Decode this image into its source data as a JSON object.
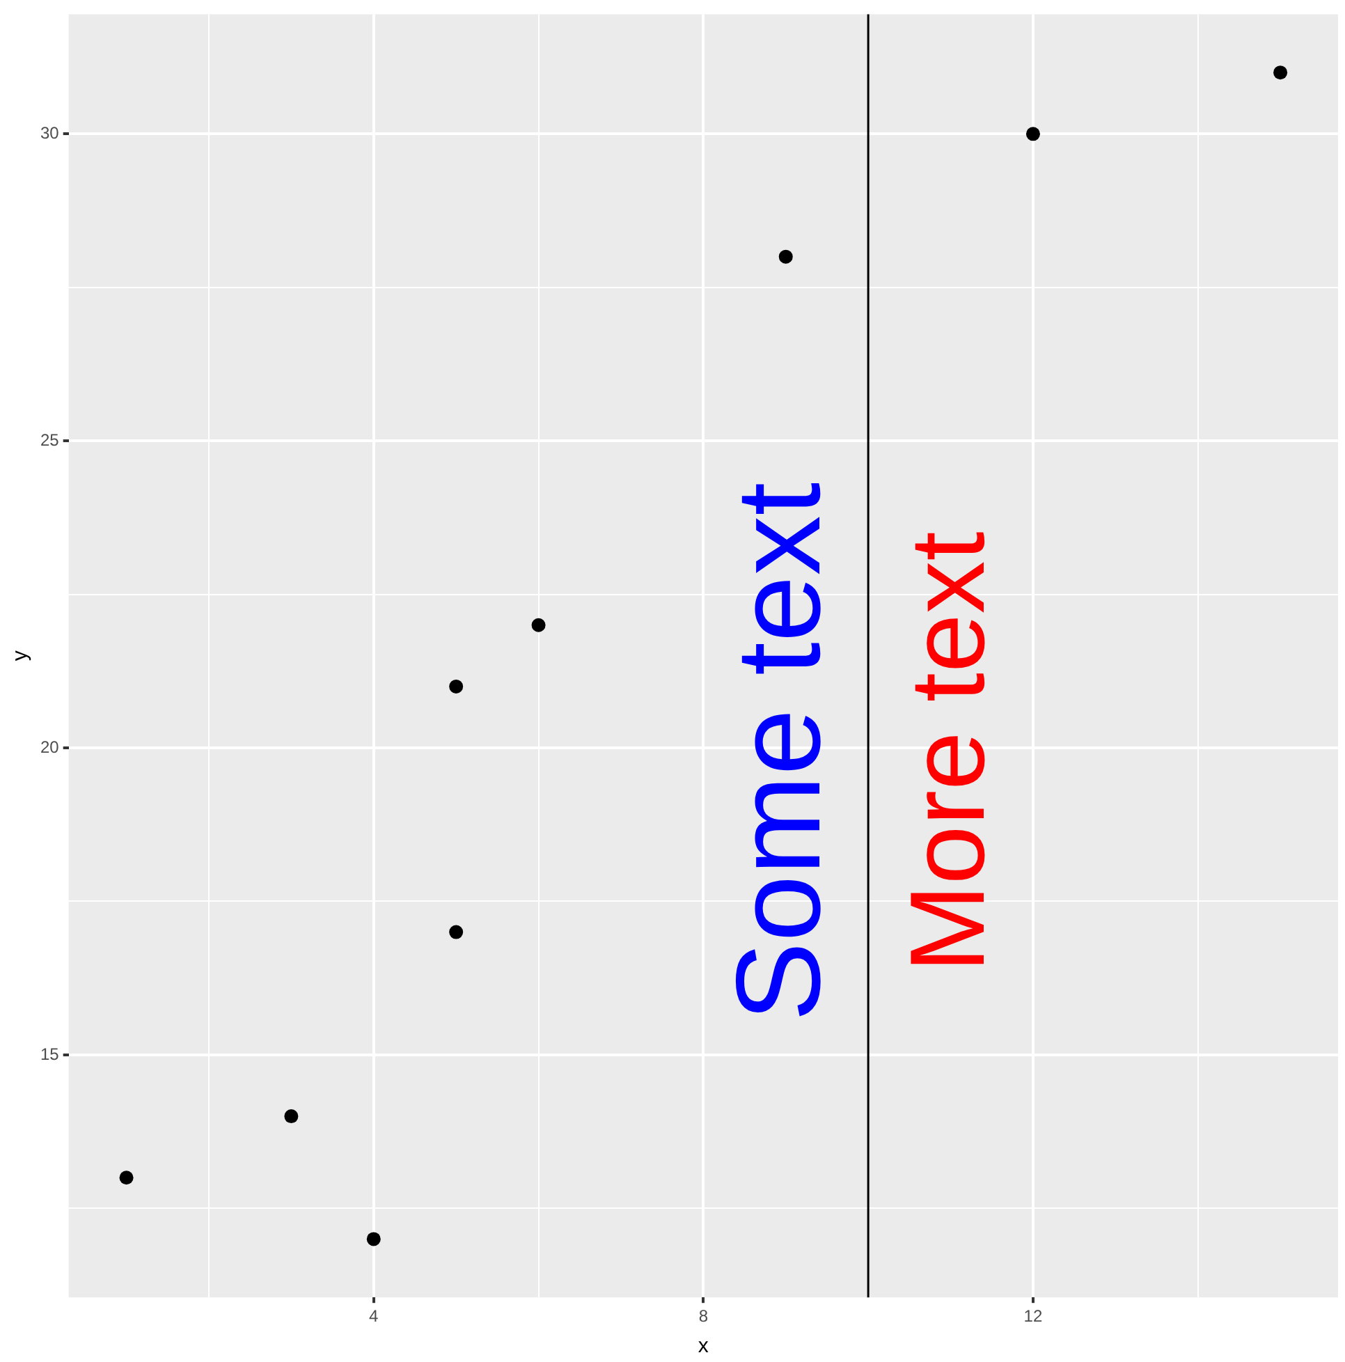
{
  "chart_data": {
    "type": "scatter",
    "xlabel": "x",
    "ylabel": "y",
    "x": [
      1,
      3,
      4,
      5,
      5,
      6,
      9,
      12,
      15
    ],
    "values": [
      13,
      14,
      12,
      17,
      21,
      22,
      28,
      30,
      31
    ],
    "color": "#000000",
    "marker": "circle",
    "xlim": [
      0.3,
      15.7
    ],
    "ylim": [
      11.05,
      31.95
    ],
    "xticks": [
      {
        "value": 2,
        "label": null
      },
      4,
      {
        "value": 6,
        "label": null
      },
      8,
      {
        "value": 10,
        "label": null
      },
      12,
      {
        "value": 14,
        "label": null
      }
    ],
    "yticks": [
      {
        "value": 12.5,
        "label": null
      },
      15,
      {
        "value": 17.5,
        "label": null
      },
      20,
      {
        "value": 22.5,
        "label": null
      },
      25,
      {
        "value": 27.5,
        "label": null
      },
      30
    ],
    "grid": true,
    "legend": false,
    "ref_lines": [
      {
        "axis": "x",
        "value": 10,
        "color": "#000000"
      }
    ],
    "annotations": [
      "Some text",
      "More text"
    ]
  }
}
